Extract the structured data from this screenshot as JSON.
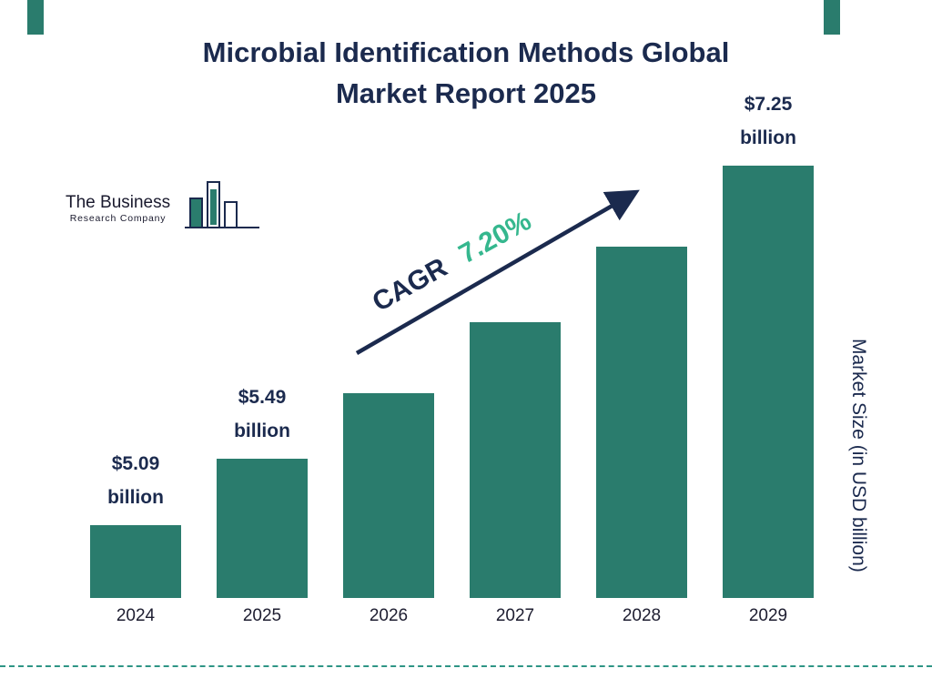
{
  "colors": {
    "bar_teal": "#2a7c6d",
    "navy": "#1b2a4e",
    "cagr_green": "#35b78e",
    "dash_teal": "#2e9585",
    "text_dark": "#1d1d30"
  },
  "header": {
    "title_line1": "Microbial Identification Methods Global",
    "title_line2": "Market Report 2025"
  },
  "logo": {
    "name": "The Business",
    "subname": "Research Company"
  },
  "annotation": {
    "cagr_label": "CAGR",
    "cagr_value": "7.20%"
  },
  "right_axis_label": "Market Size (in USD billion)",
  "chart_data": {
    "type": "bar",
    "title": "Microbial Identification Methods Global Market Report 2025",
    "categories": [
      "2024",
      "2025",
      "2026",
      "2027",
      "2028",
      "2029"
    ],
    "values": [
      5.09,
      5.49,
      5.88,
      6.31,
      6.76,
      7.25
    ],
    "labels": {
      "2024": [
        "$5.09",
        "billion"
      ],
      "2025": [
        "$5.49",
        "billion"
      ],
      "2029": [
        "$7.25",
        "billion"
      ]
    },
    "cagr": "7.20%",
    "ylabel": "Market Size (in USD billion)",
    "xlabel": "",
    "bar_color": "#2a7c6d",
    "legend": false,
    "grid": false
  }
}
